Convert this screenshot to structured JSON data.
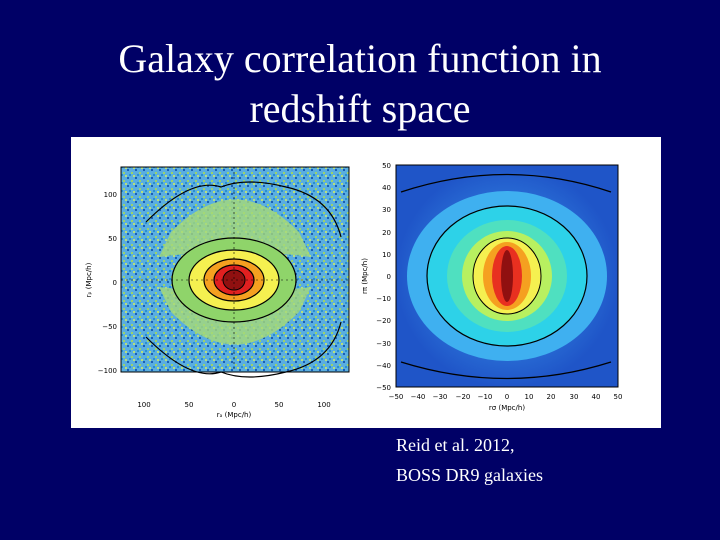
{
  "slide": {
    "title_line1": "Galaxy correlation function in",
    "title_line2": "redshift space",
    "caption_line1": "Reid et al. 2012,",
    "caption_line2": "BOSS DR9 galaxies"
  },
  "left_plot": {
    "x_ticks": [
      "100",
      "50",
      "0",
      "50",
      "100"
    ],
    "y_ticks": [
      "100",
      "50",
      "0",
      "−50",
      "−100"
    ],
    "x_label": "rₐ (Mpc/h)",
    "y_label": "rₚ (Mpc/h)"
  },
  "right_plot": {
    "x_ticks": [
      "−50",
      "−40",
      "−30",
      "−20",
      "−10",
      "0",
      "10",
      "20",
      "30",
      "40",
      "50"
    ],
    "y_ticks": [
      "50",
      "40",
      "30",
      "20",
      "10",
      "0",
      "−10",
      "−20",
      "−30",
      "−40",
      "−50"
    ],
    "x_label": "rσ (Mpc/h)",
    "y_label": "rπ (Mpc/h)"
  },
  "colors": {
    "background": "#000066",
    "text": "#ffffff"
  }
}
